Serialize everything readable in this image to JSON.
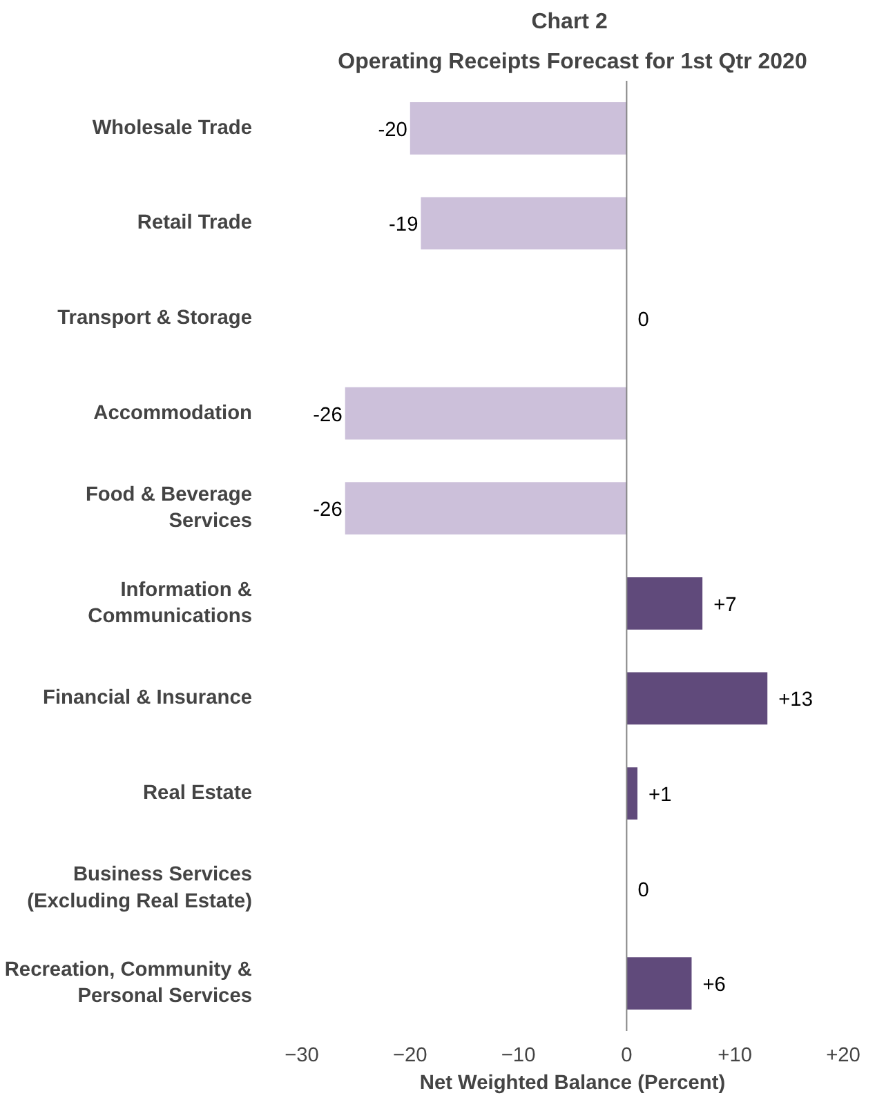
{
  "chart_data": {
    "type": "bar",
    "orientation": "horizontal",
    "title": "Chart  2",
    "subtitle": "Operating Receipts Forecast for 1st Qtr 2020",
    "xlabel": "Net Weighted Balance (Percent)",
    "categories": [
      "Wholesale Trade",
      "Retail Trade",
      "Transport & Storage",
      "Accommodation",
      "Food & Beverage Services",
      "Information & Communications",
      "Financial & Insurance",
      "Real Estate",
      "Business Services (Excluding Real Estate)",
      "Recreation, Community & Personal Services"
    ],
    "values": [
      -20,
      -19,
      0,
      -26,
      -26,
      7,
      13,
      1,
      0,
      6
    ],
    "colors": [
      "#ccc0da",
      "#ccc0da",
      "#ccc0da",
      "#ccc0da",
      "#ccc0da",
      "#604a7b",
      "#604a7b",
      "#604a7b",
      "#604a7b",
      "#604a7b"
    ],
    "value_labels": [
      "-20",
      "-19",
      "0",
      "-26",
      "-26",
      "+7",
      "+13",
      "+1",
      "0",
      "+6"
    ],
    "xlim": [
      -30,
      20
    ],
    "xticks": [
      -30,
      -20,
      -10,
      0,
      {
        "value": 10,
        "label": "+10"
      },
      {
        "value": 20,
        "label": "+20"
      }
    ],
    "ref_lines": [
      {
        "axis": "x",
        "value": 0,
        "color": "#868686"
      }
    ]
  }
}
